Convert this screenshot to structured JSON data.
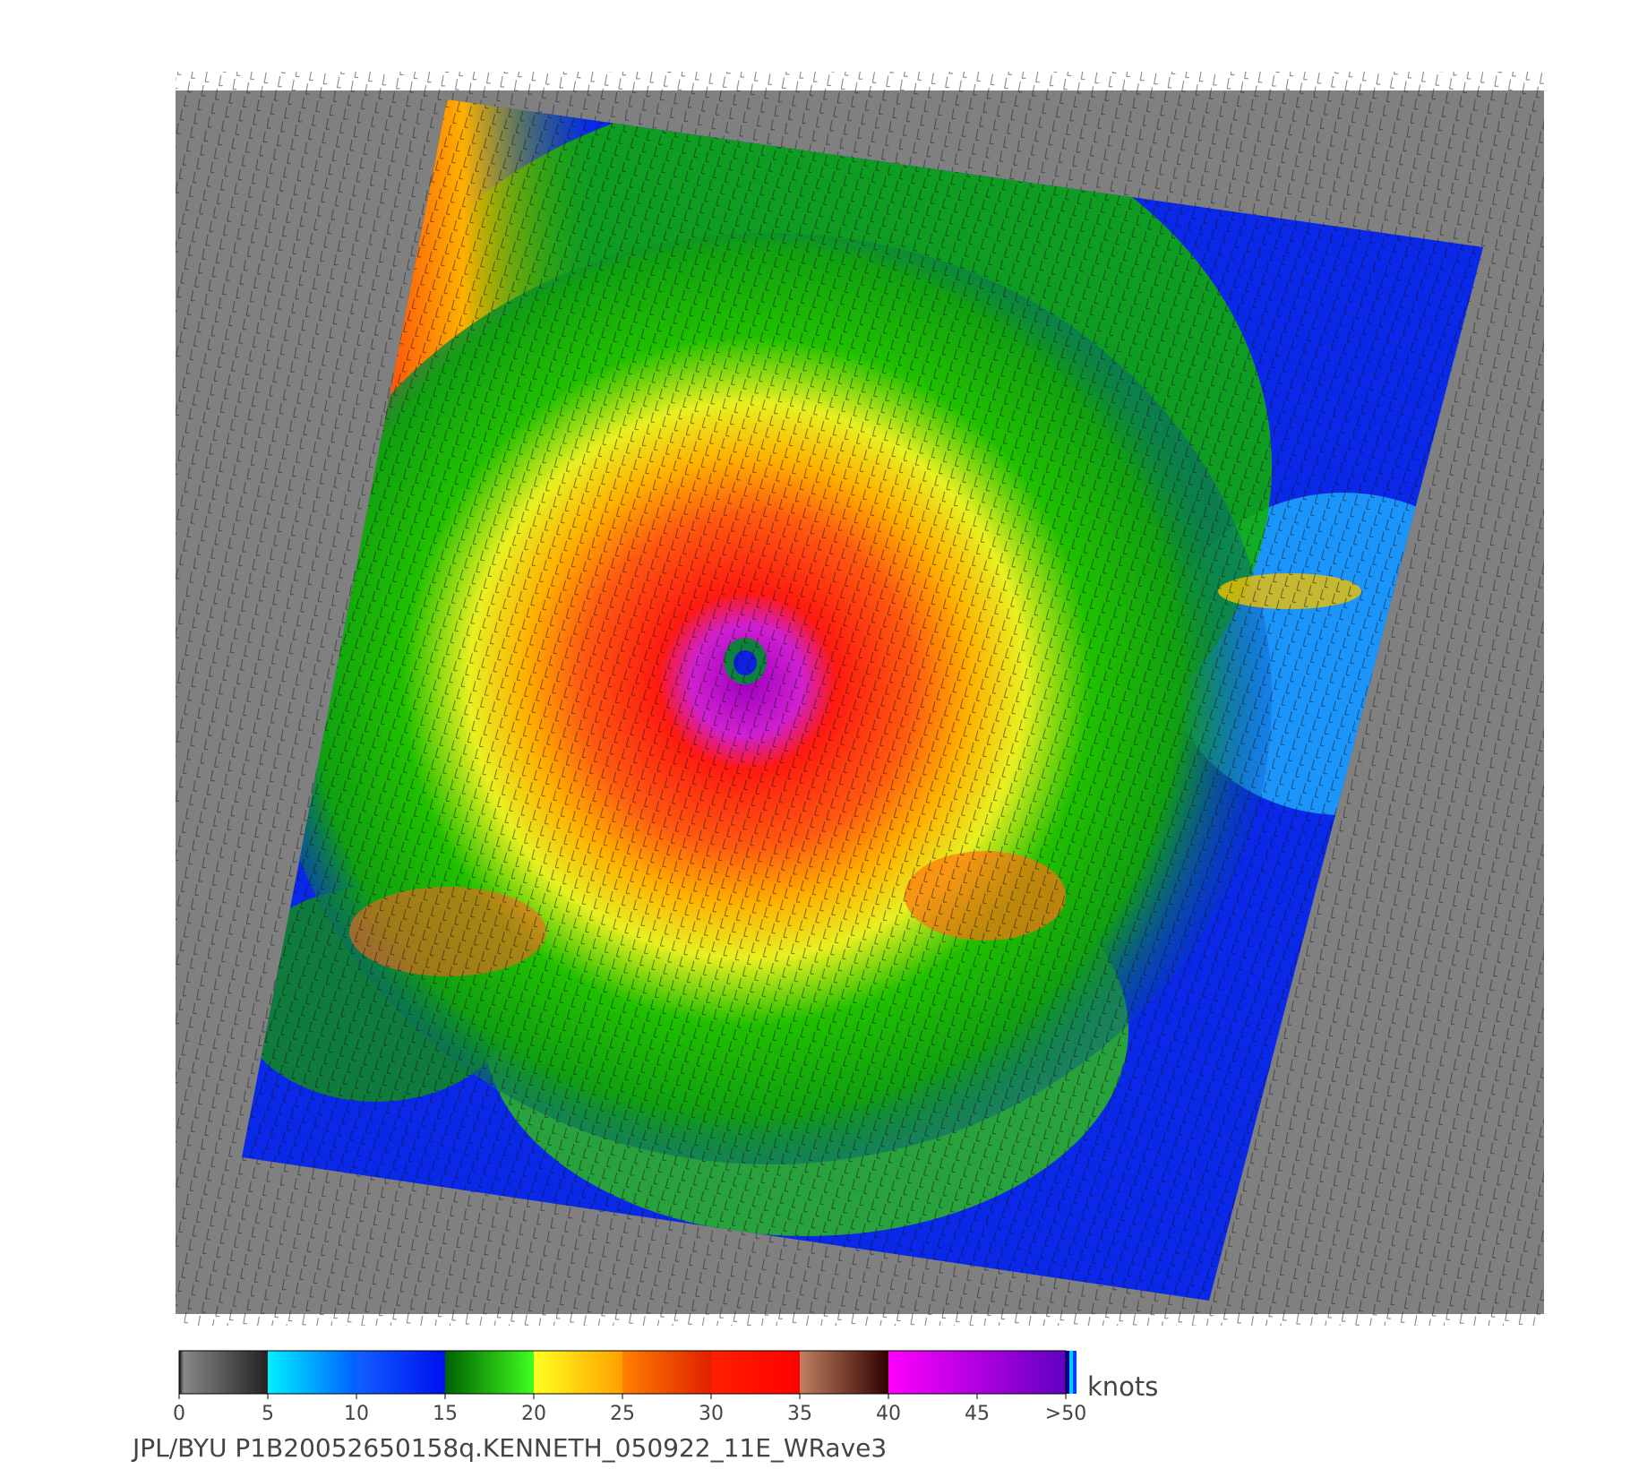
{
  "colorbar": {
    "unit": "knots",
    "ticks": [
      0,
      5,
      10,
      15,
      20,
      25,
      30,
      35,
      40,
      45,
      {
        "value": 50,
        "label": ">50"
      }
    ]
  },
  "caption": "JPL/BYU  P1B20052650158q.KENNETH_050922_11E_WRave3"
}
